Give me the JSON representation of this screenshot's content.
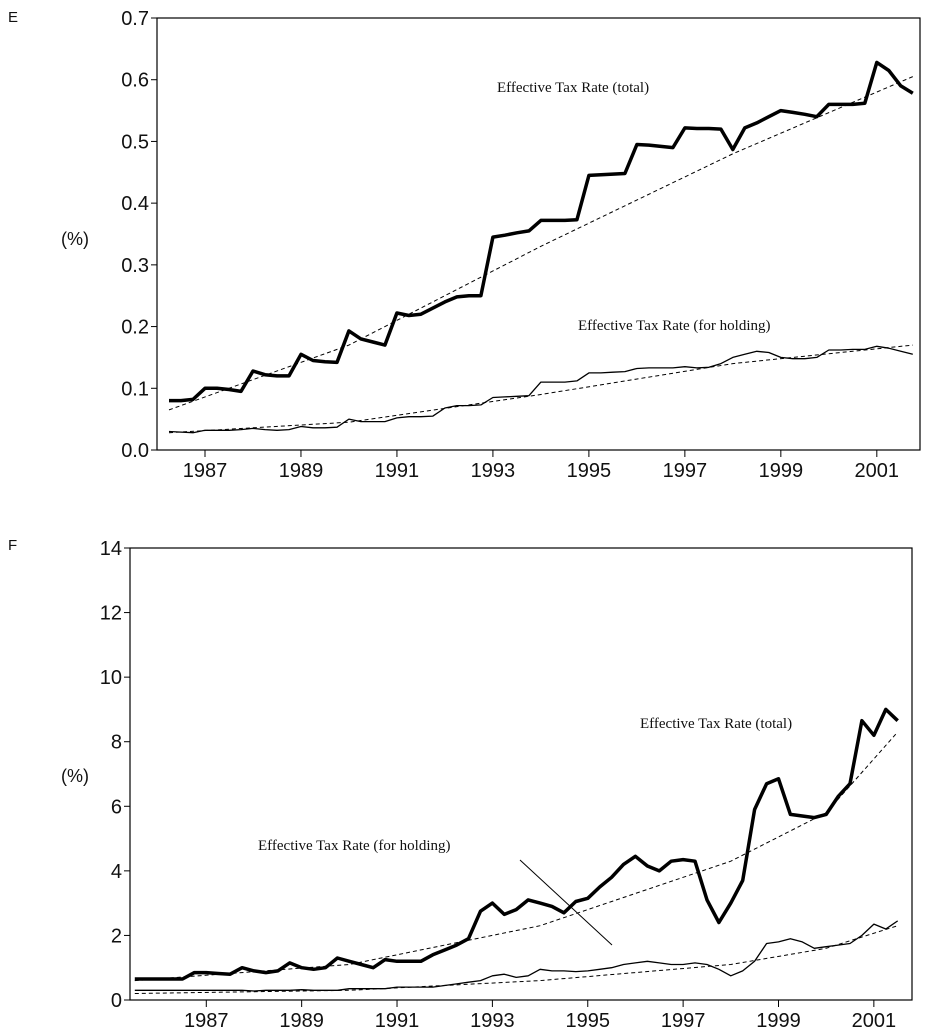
{
  "chart_data": [
    {
      "type": "line",
      "panel": "E",
      "y_label": "(%)",
      "x": [
        1986.25,
        1986.5,
        1986.75,
        1987,
        1987.25,
        1987.5,
        1987.75,
        1988,
        1988.25,
        1988.5,
        1988.75,
        1989,
        1989.25,
        1989.5,
        1989.75,
        1990,
        1990.25,
        1990.5,
        1990.75,
        1991,
        1991.25,
        1991.5,
        1991.75,
        1992,
        1992.25,
        1992.5,
        1992.75,
        1993,
        1993.25,
        1993.5,
        1993.75,
        1994,
        1994.25,
        1994.5,
        1994.75,
        1995,
        1995.25,
        1995.5,
        1995.75,
        1996,
        1996.25,
        1996.5,
        1996.75,
        1997,
        1997.25,
        1997.5,
        1997.75,
        1998,
        1998.25,
        1998.5,
        1998.75,
        1999,
        1999.25,
        1999.5,
        1999.75,
        2000,
        2000.25,
        2000.5,
        2000.75,
        2001,
        2001.25,
        2001.5,
        2001.75
      ],
      "series": [
        {
          "name": "Effective Tax Rate (total)",
          "color": "#000000",
          "width": 3.5,
          "values": [
            0.08,
            0.08,
            0.082,
            0.1,
            0.1,
            0.098,
            0.095,
            0.128,
            0.122,
            0.12,
            0.12,
            0.155,
            0.145,
            0.143,
            0.142,
            0.193,
            0.18,
            0.175,
            0.17,
            0.222,
            0.218,
            0.22,
            0.23,
            0.24,
            0.248,
            0.25,
            0.25,
            0.345,
            0.348,
            0.352,
            0.355,
            0.372,
            0.372,
            0.372,
            0.373,
            0.445,
            0.446,
            0.447,
            0.448,
            0.495,
            0.494,
            0.492,
            0.49,
            0.522,
            0.521,
            0.521,
            0.52,
            0.487,
            0.522,
            0.53,
            0.54,
            0.55,
            0.547,
            0.544,
            0.54,
            0.56,
            0.56,
            0.56,
            0.562,
            0.628,
            0.615,
            0.59,
            0.578
          ]
        },
        {
          "name": "Effective Tax Rate (for holding)",
          "color": "#000000",
          "width": 1.3,
          "values": [
            0.03,
            0.029,
            0.028,
            0.032,
            0.032,
            0.032,
            0.033,
            0.035,
            0.033,
            0.032,
            0.033,
            0.038,
            0.036,
            0.036,
            0.037,
            0.05,
            0.046,
            0.046,
            0.046,
            0.052,
            0.054,
            0.054,
            0.055,
            0.068,
            0.072,
            0.072,
            0.073,
            0.085,
            0.086,
            0.087,
            0.088,
            0.11,
            0.11,
            0.11,
            0.112,
            0.125,
            0.125,
            0.126,
            0.127,
            0.132,
            0.133,
            0.133,
            0.133,
            0.135,
            0.133,
            0.134,
            0.14,
            0.15,
            0.155,
            0.16,
            0.158,
            0.15,
            0.148,
            0.148,
            0.15,
            0.162,
            0.162,
            0.163,
            0.163,
            0.168,
            0.165,
            0.16,
            0.155
          ]
        }
      ],
      "trends": [
        {
          "x": [
            1986.25,
            1990,
            1994,
            1998,
            2001.75
          ],
          "values": [
            0.065,
            0.17,
            0.33,
            0.48,
            0.605
          ]
        },
        {
          "x": [
            1986.25,
            1990,
            1994,
            1998,
            2001.75
          ],
          "values": [
            0.028,
            0.045,
            0.09,
            0.14,
            0.17
          ]
        }
      ],
      "xlim": [
        1986,
        2001.9
      ],
      "xticks": [
        1987,
        1989,
        1991,
        1993,
        1995,
        1997,
        1999,
        2001
      ],
      "ylim": [
        0,
        0.7
      ],
      "yticks": [
        {
          "value": 0,
          "label": "0.0"
        },
        0.1,
        0.2,
        0.3,
        0.4,
        0.5,
        0.6,
        0.7
      ]
    },
    {
      "type": "line",
      "panel": "F",
      "y_label": "(%)",
      "x": [
        1985.5,
        1985.75,
        1986,
        1986.25,
        1986.5,
        1986.75,
        1987,
        1987.25,
        1987.5,
        1987.75,
        1988,
        1988.25,
        1988.5,
        1988.75,
        1989,
        1989.25,
        1989.5,
        1989.75,
        1990,
        1990.25,
        1990.5,
        1990.75,
        1991,
        1991.25,
        1991.5,
        1991.75,
        1992,
        1992.25,
        1992.5,
        1992.75,
        1993,
        1993.25,
        1993.5,
        1993.75,
        1994,
        1994.25,
        1994.5,
        1994.75,
        1995,
        1995.25,
        1995.5,
        1995.75,
        1996,
        1996.25,
        1996.5,
        1996.75,
        1997,
        1997.25,
        1997.5,
        1997.75,
        1998,
        1998.25,
        1998.5,
        1998.75,
        1999,
        1999.25,
        1999.5,
        1999.75,
        2000,
        2000.25,
        2000.5,
        2000.75,
        2001,
        2001.25,
        2001.5
      ],
      "series": [
        {
          "name": "Effective Tax Rate (total)",
          "color": "#000000",
          "width": 3.5,
          "values": [
            0.65,
            0.65,
            0.65,
            0.65,
            0.65,
            0.85,
            0.85,
            0.82,
            0.8,
            1.0,
            0.9,
            0.85,
            0.9,
            1.15,
            1.0,
            0.95,
            1.0,
            1.3,
            1.2,
            1.1,
            1.0,
            1.25,
            1.2,
            1.2,
            1.2,
            1.4,
            1.55,
            1.7,
            1.9,
            2.75,
            3.0,
            2.65,
            2.8,
            3.1,
            3.0,
            2.9,
            2.7,
            3.05,
            3.15,
            3.5,
            3.8,
            4.2,
            4.45,
            4.15,
            4.0,
            4.3,
            4.35,
            4.3,
            3.1,
            2.4,
            3.0,
            3.7,
            5.9,
            6.7,
            6.85,
            5.75,
            5.7,
            5.65,
            5.75,
            6.3,
            6.7,
            8.65,
            8.2,
            9.0,
            8.65
          ]
        },
        {
          "name": "Effective Tax Rate (for holding)",
          "color": "#000000",
          "width": 1.3,
          "values": [
            0.3,
            0.3,
            0.3,
            0.3,
            0.3,
            0.3,
            0.3,
            0.3,
            0.3,
            0.3,
            0.28,
            0.3,
            0.3,
            0.3,
            0.32,
            0.3,
            0.3,
            0.3,
            0.35,
            0.35,
            0.35,
            0.35,
            0.4,
            0.4,
            0.4,
            0.4,
            0.45,
            0.5,
            0.55,
            0.6,
            0.75,
            0.8,
            0.7,
            0.75,
            0.95,
            0.9,
            0.9,
            0.88,
            0.9,
            0.95,
            1.0,
            1.1,
            1.15,
            1.2,
            1.15,
            1.1,
            1.1,
            1.15,
            1.1,
            0.95,
            0.75,
            0.9,
            1.2,
            1.75,
            1.8,
            1.9,
            1.8,
            1.6,
            1.65,
            1.7,
            1.75,
            2.0,
            2.35,
            2.2,
            2.45
          ]
        }
      ],
      "trends": [
        {
          "x": [
            1985.5,
            1990,
            1994,
            1998,
            2000,
            2001.5
          ],
          "values": [
            0.6,
            1.1,
            2.3,
            4.3,
            5.8,
            8.3
          ]
        },
        {
          "x": [
            1985.5,
            1990,
            1994,
            1998,
            2000,
            2001.5
          ],
          "values": [
            0.2,
            0.3,
            0.6,
            1.1,
            1.6,
            2.3
          ]
        }
      ],
      "xlim": [
        1985.4,
        2001.8
      ],
      "xticks": [
        1987,
        1989,
        1991,
        1993,
        1995,
        1997,
        1999,
        2001
      ],
      "ylim": [
        0,
        14
      ],
      "yticks": [
        0,
        2,
        4,
        6,
        8,
        10,
        12,
        14
      ]
    }
  ]
}
